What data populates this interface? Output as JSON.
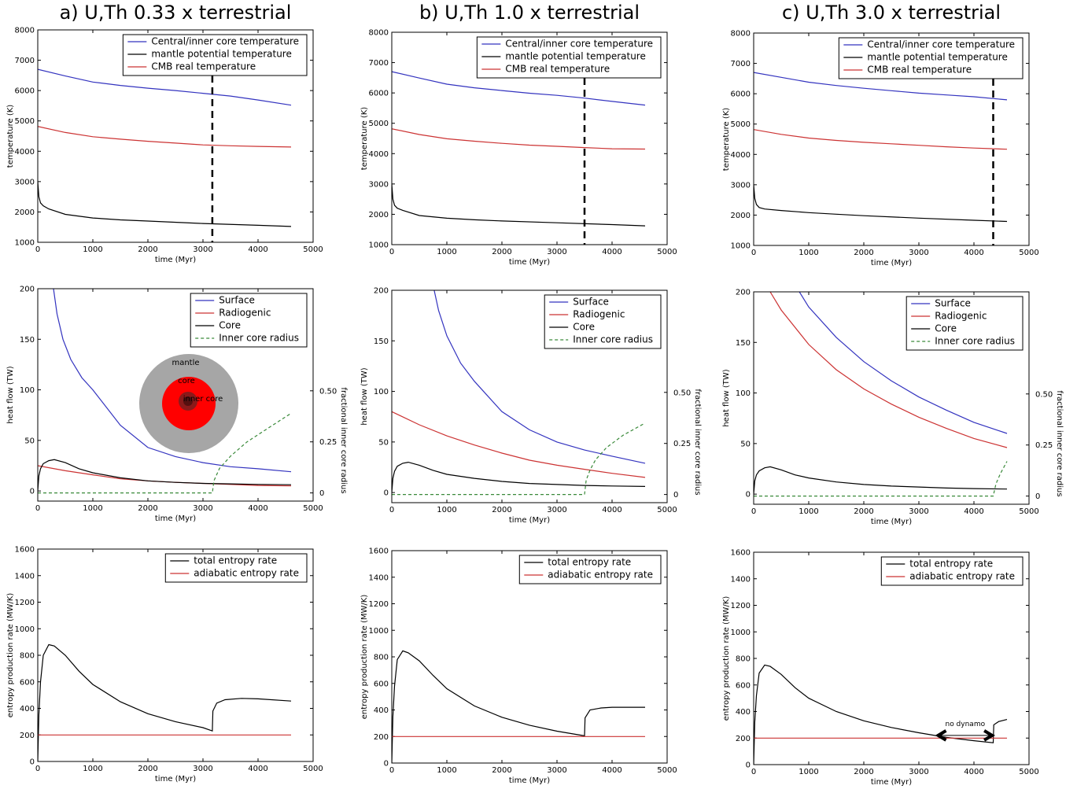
{
  "chart_data": [
    {
      "type": "line",
      "title": "a) U,Th 0.33 x terrestrial",
      "xlabel": "time (Myr)",
      "ylabel": "temperature (K)",
      "xlim": [
        0,
        5000
      ],
      "xticks": [
        0,
        1000,
        2000,
        3000,
        4000,
        5000
      ],
      "ylim": [
        1000,
        8000
      ],
      "yticks": [
        1000,
        2000,
        3000,
        4000,
        5000,
        6000,
        7000,
        8000
      ],
      "legend": "upper right",
      "vline": 3170,
      "series": [
        {
          "name": "Central/inner core temperature",
          "color": "#3333bf",
          "x": [
            0,
            500,
            1000,
            1500,
            2000,
            2500,
            3000,
            3500,
            4000,
            4600
          ],
          "values": [
            6700,
            6480,
            6280,
            6170,
            6080,
            6000,
            5910,
            5820,
            5690,
            5520
          ]
        },
        {
          "name": "mantle potential temperature",
          "color": "#000000",
          "x": [
            0,
            20,
            50,
            100,
            200,
            500,
            1000,
            1500,
            2000,
            3000,
            4000,
            4600
          ],
          "values": [
            3000,
            2500,
            2300,
            2200,
            2100,
            1920,
            1800,
            1740,
            1700,
            1620,
            1560,
            1520
          ]
        },
        {
          "name": "CMB real temperature",
          "color": "#cc3333",
          "x": [
            0,
            500,
            1000,
            1500,
            2000,
            2500,
            3000,
            3500,
            4000,
            4600
          ],
          "values": [
            4820,
            4620,
            4480,
            4400,
            4330,
            4270,
            4210,
            4180,
            4160,
            4140
          ]
        }
      ]
    },
    {
      "type": "line",
      "title": "b) U,Th 1.0 x terrestrial",
      "xlabel": "time (Myr)",
      "ylabel": "temperature (K)",
      "xlim": [
        0,
        5000
      ],
      "xticks": [
        0,
        1000,
        2000,
        3000,
        4000,
        5000
      ],
      "ylim": [
        1000,
        8000
      ],
      "yticks": [
        1000,
        2000,
        3000,
        4000,
        5000,
        6000,
        7000,
        8000
      ],
      "legend": "upper right",
      "vline": 3500,
      "series": [
        {
          "name": "Central/inner core temperature",
          "color": "#3333bf",
          "x": [
            0,
            500,
            1000,
            1500,
            2000,
            2500,
            3000,
            3500,
            4000,
            4600
          ],
          "values": [
            6700,
            6490,
            6290,
            6170,
            6080,
            5990,
            5920,
            5830,
            5720,
            5600
          ]
        },
        {
          "name": "mantle potential temperature",
          "color": "#000000",
          "x": [
            0,
            20,
            50,
            100,
            200,
            500,
            1000,
            1500,
            2000,
            3000,
            4000,
            4600
          ],
          "values": [
            3000,
            2500,
            2300,
            2200,
            2130,
            1960,
            1870,
            1820,
            1780,
            1720,
            1660,
            1620
          ]
        },
        {
          "name": "CMB real temperature",
          "color": "#cc3333",
          "x": [
            0,
            500,
            1000,
            1500,
            2000,
            2500,
            3000,
            3500,
            4000,
            4600
          ],
          "values": [
            4820,
            4630,
            4490,
            4410,
            4340,
            4280,
            4240,
            4200,
            4160,
            4150
          ]
        }
      ]
    },
    {
      "type": "line",
      "title": "c) U,Th 3.0 x terrestrial",
      "xlabel": "time (Myr)",
      "ylabel": "temperature (K)",
      "xlim": [
        0,
        5000
      ],
      "xticks": [
        0,
        1000,
        2000,
        3000,
        4000,
        5000
      ],
      "ylim": [
        1000,
        8000
      ],
      "yticks": [
        1000,
        2000,
        3000,
        4000,
        5000,
        6000,
        7000,
        8000
      ],
      "legend": "upper right",
      "vline": 4350,
      "series": [
        {
          "name": "Central/inner core temperature",
          "color": "#3333bf",
          "x": [
            0,
            500,
            1000,
            1500,
            2000,
            2500,
            3000,
            3500,
            4000,
            4600
          ],
          "values": [
            6700,
            6540,
            6380,
            6270,
            6180,
            6100,
            6020,
            5960,
            5900,
            5800
          ]
        },
        {
          "name": "mantle potential temperature",
          "color": "#000000",
          "x": [
            0,
            20,
            50,
            100,
            200,
            500,
            1000,
            1500,
            2000,
            3000,
            4000,
            4600
          ],
          "values": [
            3000,
            2550,
            2350,
            2250,
            2200,
            2150,
            2080,
            2030,
            1980,
            1900,
            1830,
            1790
          ]
        },
        {
          "name": "CMB real temperature",
          "color": "#cc3333",
          "x": [
            0,
            500,
            1000,
            1500,
            2000,
            2500,
            3000,
            3500,
            4000,
            4600
          ],
          "values": [
            4820,
            4660,
            4540,
            4460,
            4400,
            4350,
            4300,
            4250,
            4210,
            4170
          ]
        }
      ]
    },
    {
      "type": "line",
      "xlabel": "time (Myr)",
      "ylabel": "heat flow (TW)",
      "y2label": "fractional inner core radius",
      "xlim": [
        0,
        5000
      ],
      "xticks": [
        0,
        1000,
        2000,
        3000,
        4000,
        5000
      ],
      "ylim": [
        -10,
        200
      ],
      "yticks": [
        0,
        50,
        100,
        150,
        200
      ],
      "y2lim": [
        -0.04,
        1.0
      ],
      "y2ticks": [
        0,
        0.25,
        {
          "value": 0.5,
          "label": "0.50"
        }
      ],
      "legend": "upper right",
      "inset_labels": [
        "mantle",
        "core",
        "inner core"
      ],
      "series": [
        {
          "name": "Surface",
          "color": "#3333bf",
          "x": [
            286,
            350,
            457,
            600,
            800,
            1000,
            1500,
            2000,
            2500,
            3000,
            3500,
            4000,
            4600
          ],
          "values": [
            200,
            175,
            150,
            130,
            112,
            100,
            65,
            43,
            34,
            28,
            24,
            22,
            19
          ]
        },
        {
          "name": "Radiogenic",
          "color": "#cc3333",
          "x": [
            0,
            500,
            1000,
            1500,
            2000,
            2500,
            3000,
            3500,
            4000,
            4600
          ],
          "values": [
            25,
            20,
            16,
            12,
            10,
            8.5,
            7.5,
            6.5,
            5.5,
            5
          ]
        },
        {
          "name": "Core",
          "color": "#000000",
          "x": [
            0,
            20,
            50,
            100,
            200,
            300,
            500,
            750,
            1000,
            1500,
            2000,
            2500,
            3000,
            3500,
            4000,
            4600
          ],
          "values": [
            0,
            15,
            22,
            27,
            30,
            31,
            28,
            22,
            18,
            13,
            10,
            8.5,
            7.5,
            7,
            6.5,
            6.2
          ]
        },
        {
          "name": "Inner core radius",
          "color": "#3a8a3a",
          "dash": true,
          "axis": "y2",
          "x": [
            0,
            3170,
            3200,
            3300,
            3500,
            3800,
            4200,
            4600
          ],
          "values": [
            0,
            0,
            0.06,
            0.12,
            0.18,
            0.25,
            0.32,
            0.39
          ]
        }
      ]
    },
    {
      "type": "line",
      "xlabel": "time (Myr)",
      "ylabel": "heat flow (TW)",
      "y2label": "fractional inner core radius",
      "xlim": [
        0,
        5000
      ],
      "xticks": [
        0,
        1000,
        2000,
        3000,
        4000,
        5000
      ],
      "ylim": [
        -10,
        200
      ],
      "yticks": [
        0,
        50,
        100,
        150,
        200
      ],
      "y2lim": [
        -0.04,
        1.0
      ],
      "y2ticks": [
        0,
        0.25,
        {
          "value": 0.5,
          "label": "0.50"
        }
      ],
      "legend": "upper right",
      "series": [
        {
          "name": "Surface",
          "color": "#3333bf",
          "x": [
            770,
            850,
            1000,
            1250,
            1500,
            2000,
            2500,
            3000,
            3500,
            4000,
            4600
          ],
          "values": [
            200,
            180,
            155,
            128,
            110,
            80,
            62,
            50,
            42,
            36,
            29
          ]
        },
        {
          "name": "Radiogenic",
          "color": "#cc3333",
          "x": [
            0,
            500,
            1000,
            1500,
            2000,
            2500,
            3000,
            3500,
            4000,
            4600
          ],
          "values": [
            80,
            67,
            56,
            47,
            39,
            32,
            27,
            23,
            19,
            15
          ]
        },
        {
          "name": "Core",
          "color": "#000000",
          "x": [
            0,
            20,
            50,
            100,
            200,
            300,
            500,
            750,
            1000,
            1500,
            2000,
            2500,
            3000,
            3500,
            4000,
            4600
          ],
          "values": [
            0,
            14,
            21,
            26,
            29,
            30,
            27,
            22,
            18,
            14,
            11,
            9,
            8,
            7,
            6.5,
            6
          ]
        },
        {
          "name": "Inner core radius",
          "color": "#3a8a3a",
          "dash": true,
          "axis": "y2",
          "x": [
            0,
            3500,
            3530,
            3600,
            3700,
            3900,
            4200,
            4600
          ],
          "values": [
            0,
            0,
            0.07,
            0.12,
            0.17,
            0.23,
            0.29,
            0.35
          ]
        }
      ]
    },
    {
      "type": "line",
      "xlabel": "time (Myr)",
      "ylabel": "heat flow (TW)",
      "y2label": "fractional inner core radius",
      "xlim": [
        0,
        5000
      ],
      "xticks": [
        0,
        1000,
        2000,
        3000,
        4000,
        5000
      ],
      "ylim": [
        -10,
        200
      ],
      "yticks": [
        0,
        50,
        100,
        150,
        200
      ],
      "y2lim": [
        -0.04,
        1.0
      ],
      "y2ticks": [
        0,
        0.25,
        {
          "value": 0.5,
          "label": "0.50"
        }
      ],
      "legend": "upper right",
      "series": [
        {
          "name": "Surface",
          "color": "#3333bf",
          "x": [
            830,
            1000,
            1500,
            2000,
            2500,
            3000,
            3500,
            4000,
            4600
          ],
          "values": [
            200,
            185,
            155,
            131,
            112,
            96,
            83,
            71,
            60
          ]
        },
        {
          "name": "Radiogenic",
          "color": "#cc3333",
          "x": [
            300,
            500,
            1000,
            1500,
            2000,
            2500,
            3000,
            3500,
            4000,
            4600
          ],
          "values": [
            200,
            182,
            148,
            123,
            104,
            89,
            76,
            65,
            55,
            46
          ]
        },
        {
          "name": "Core",
          "color": "#000000",
          "x": [
            0,
            20,
            50,
            100,
            200,
            300,
            500,
            750,
            1000,
            1500,
            2000,
            2500,
            3000,
            3500,
            4000,
            4600
          ],
          "values": [
            0,
            13,
            19,
            23,
            26,
            27,
            24,
            19,
            16,
            12,
            9.5,
            8,
            7,
            6,
            5.5,
            5
          ]
        },
        {
          "name": "Inner core radius",
          "color": "#3a8a3a",
          "dash": true,
          "axis": "y2",
          "x": [
            0,
            4350,
            4400,
            4480,
            4600
          ],
          "values": [
            0,
            0,
            0.06,
            0.11,
            0.17
          ]
        }
      ]
    },
    {
      "type": "line",
      "xlabel": "time (Myr)",
      "ylabel": "entropy production rate (MW/K)",
      "xlim": [
        0,
        5000
      ],
      "xticks": [
        0,
        1000,
        2000,
        3000,
        4000,
        5000
      ],
      "ylim": [
        0,
        1600
      ],
      "yticks": [
        0,
        200,
        400,
        600,
        800,
        1000,
        1200,
        1400,
        1600
      ],
      "legend": "upper right",
      "series": [
        {
          "name": "total entropy rate",
          "color": "#000000",
          "x": [
            0,
            20,
            50,
            100,
            200,
            300,
            500,
            750,
            1000,
            1500,
            2000,
            2500,
            3000,
            3170,
            3180,
            3250,
            3400,
            3700,
            4000,
            4600
          ],
          "values": [
            0,
            350,
            600,
            800,
            880,
            870,
            800,
            680,
            580,
            450,
            360,
            300,
            255,
            230,
            380,
            440,
            465,
            475,
            472,
            455
          ]
        },
        {
          "name": "adiabatic entropy rate",
          "color": "#cc3333",
          "x": [
            0,
            4600
          ],
          "values": [
            200,
            200
          ]
        }
      ]
    },
    {
      "type": "line",
      "xlabel": "time (Myr)",
      "ylabel": "entropy production rate (MW/K)",
      "xlim": [
        0,
        5000
      ],
      "xticks": [
        0,
        1000,
        2000,
        3000,
        4000,
        5000
      ],
      "ylim": [
        0,
        1600
      ],
      "yticks": [
        0,
        200,
        400,
        600,
        800,
        1000,
        1200,
        1400,
        1600
      ],
      "legend": "upper right",
      "series": [
        {
          "name": "total entropy rate",
          "color": "#000000",
          "x": [
            0,
            20,
            50,
            100,
            200,
            300,
            500,
            750,
            1000,
            1500,
            2000,
            2500,
            3000,
            3500,
            3510,
            3600,
            3800,
            4000,
            4600
          ],
          "values": [
            0,
            350,
            580,
            780,
            845,
            830,
            770,
            660,
            560,
            430,
            345,
            285,
            240,
            205,
            340,
            400,
            415,
            420,
            420
          ]
        },
        {
          "name": "adiabatic entropy rate",
          "color": "#cc3333",
          "x": [
            0,
            4600
          ],
          "values": [
            200,
            200
          ]
        }
      ]
    },
    {
      "type": "line",
      "xlabel": "time (Myr)",
      "ylabel": "entropy production rate (MW/K)",
      "xlim": [
        0,
        5000
      ],
      "xticks": [
        0,
        1000,
        2000,
        3000,
        4000,
        5000
      ],
      "ylim": [
        0,
        1600
      ],
      "yticks": [
        0,
        200,
        400,
        600,
        800,
        1000,
        1200,
        1400,
        1600
      ],
      "legend": "upper right",
      "annotation": {
        "text": "no dynamo",
        "x": [
          3350,
          4330
        ],
        "y": 220
      },
      "series": [
        {
          "name": "total entropy rate",
          "color": "#000000",
          "x": [
            0,
            20,
            50,
            100,
            200,
            300,
            500,
            750,
            1000,
            1500,
            2000,
            2500,
            3000,
            3500,
            4000,
            4350,
            4360,
            4450,
            4600
          ],
          "values": [
            0,
            320,
            520,
            690,
            750,
            740,
            680,
            580,
            500,
            400,
            330,
            280,
            240,
            205,
            180,
            165,
            300,
            325,
            340
          ]
        },
        {
          "name": "adiabatic entropy rate",
          "color": "#cc3333",
          "x": [
            0,
            4600
          ],
          "values": [
            200,
            200
          ]
        }
      ]
    }
  ]
}
